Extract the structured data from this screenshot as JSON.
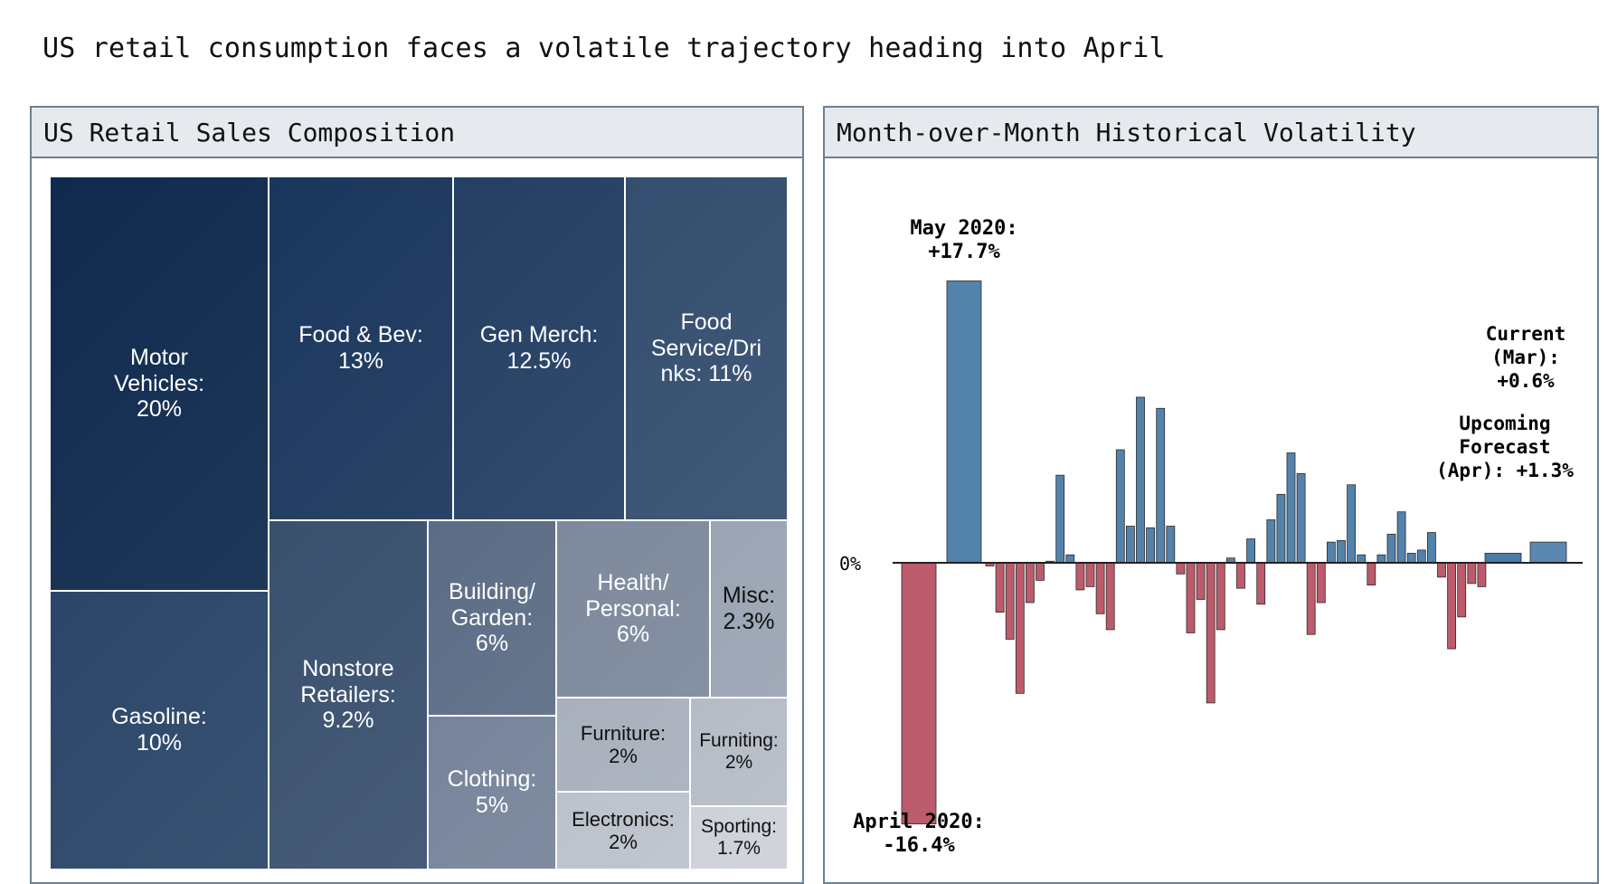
{
  "headline": "US retail consumption faces a volatile trajectory heading into April",
  "colors": {
    "positive": "#4a7ba7",
    "negative": "#b85263",
    "forecast": "#5b87b0",
    "panel_border": "#6d7f91",
    "panel_header_bg": "#e6e9ee"
  },
  "chart_data": [
    {
      "type": "treemap",
      "title": "US Retail Sales Composition",
      "items": [
        {
          "label": "Motor\nVehicles:\n20%",
          "name": "Motor Vehicles",
          "value": 20,
          "color": "#0f2a4e",
          "text_color": "#ffffff"
        },
        {
          "label": "Gasoline:\n10%",
          "name": "Gasoline",
          "value": 10,
          "color": "#2b4669",
          "text_color": "#ffffff"
        },
        {
          "label": "Food & Bev:\n13%",
          "name": "Food & Bev",
          "value": 13,
          "color": "#1a365c",
          "text_color": "#ffffff"
        },
        {
          "label": "Gen Merch:\n12.5%",
          "name": "Gen Merch",
          "value": 12.5,
          "color": "#243f63",
          "text_color": "#ffffff"
        },
        {
          "label": "Food\nService/Dri\nnks: 11%",
          "name": "Food Service/Drinks",
          "value": 11,
          "color": "#344e6f",
          "text_color": "#ffffff"
        },
        {
          "label": "Nonstore\nRetailers:\n9.2%",
          "name": "Nonstore Retailers",
          "value": 9.2,
          "color": "#3a506e",
          "text_color": "#ffffff"
        },
        {
          "label": "Building/\nGarden:\n6%",
          "name": "Building/Garden",
          "value": 6,
          "color": "#5b6c85",
          "text_color": "#ffffff"
        },
        {
          "label": "Clothing:\n5%",
          "name": "Clothing",
          "value": 5,
          "color": "#76849a",
          "text_color": "#ffffff"
        },
        {
          "label": "Health/\nPersonal:\n6%",
          "name": "Health/Personal",
          "value": 6,
          "color": "#7d899c",
          "text_color": "#ffffff"
        },
        {
          "label": "Misc:\n2.3%",
          "name": "Misc",
          "value": 2.3,
          "color": "#9aa4b3",
          "text_color": "#111111"
        },
        {
          "label": "Furniture:\n2%",
          "name": "Furniture",
          "value": 2,
          "color": "#a8b0bc",
          "text_color": "#111111"
        },
        {
          "label": "Furniting:\n2%",
          "name": "Furniting",
          "value": 2,
          "color": "#b5bcc6",
          "text_color": "#111111"
        },
        {
          "label": "Electronics:\n2%",
          "name": "Electronics",
          "value": 2,
          "color": "#bcc2cb",
          "text_color": "#111111"
        },
        {
          "label": "Sporting:\n1.7%",
          "name": "Sporting",
          "value": 1.7,
          "color": "#cdd1d8",
          "text_color": "#111111"
        }
      ]
    },
    {
      "type": "bar",
      "title": "Month-over-Month Historical Volatility",
      "ylabel": "",
      "xlabel": "",
      "zero_label": "0%",
      "ylim": [
        -16.4,
        17.7
      ],
      "values": [
        -16.4,
        17.7,
        -0.2,
        -3.1,
        -4.8,
        -8.2,
        -2.5,
        -1.1,
        0.1,
        5.5,
        0.5,
        -1.7,
        -1.5,
        -3.2,
        -4.2,
        7.1,
        2.3,
        10.4,
        2.2,
        9.7,
        2.3,
        -0.7,
        -4.4,
        -2.3,
        -8.8,
        -4.2,
        0.3,
        -1.6,
        1.5,
        -2.6,
        2.7,
        4.3,
        6.9,
        5.6,
        -4.5,
        -2.5,
        1.3,
        1.4,
        4.9,
        0.5,
        -1.4,
        0.5,
        1.8,
        3.2,
        0.6,
        0.8,
        1.9,
        -0.9,
        -5.4,
        -3.4,
        -1.3,
        -1.5
      ],
      "highlights": [
        {
          "index": 0,
          "label": "April 2020:\n-16.4%"
        },
        {
          "index": 1,
          "label": "May 2020:\n+17.7%"
        }
      ],
      "current": {
        "label": "Current\n(Mar):\n+0.6%",
        "value": 0.6
      },
      "forecast": {
        "label": "Upcoming\nForecast\n(Apr): +1.3%",
        "value": 1.3
      }
    }
  ]
}
